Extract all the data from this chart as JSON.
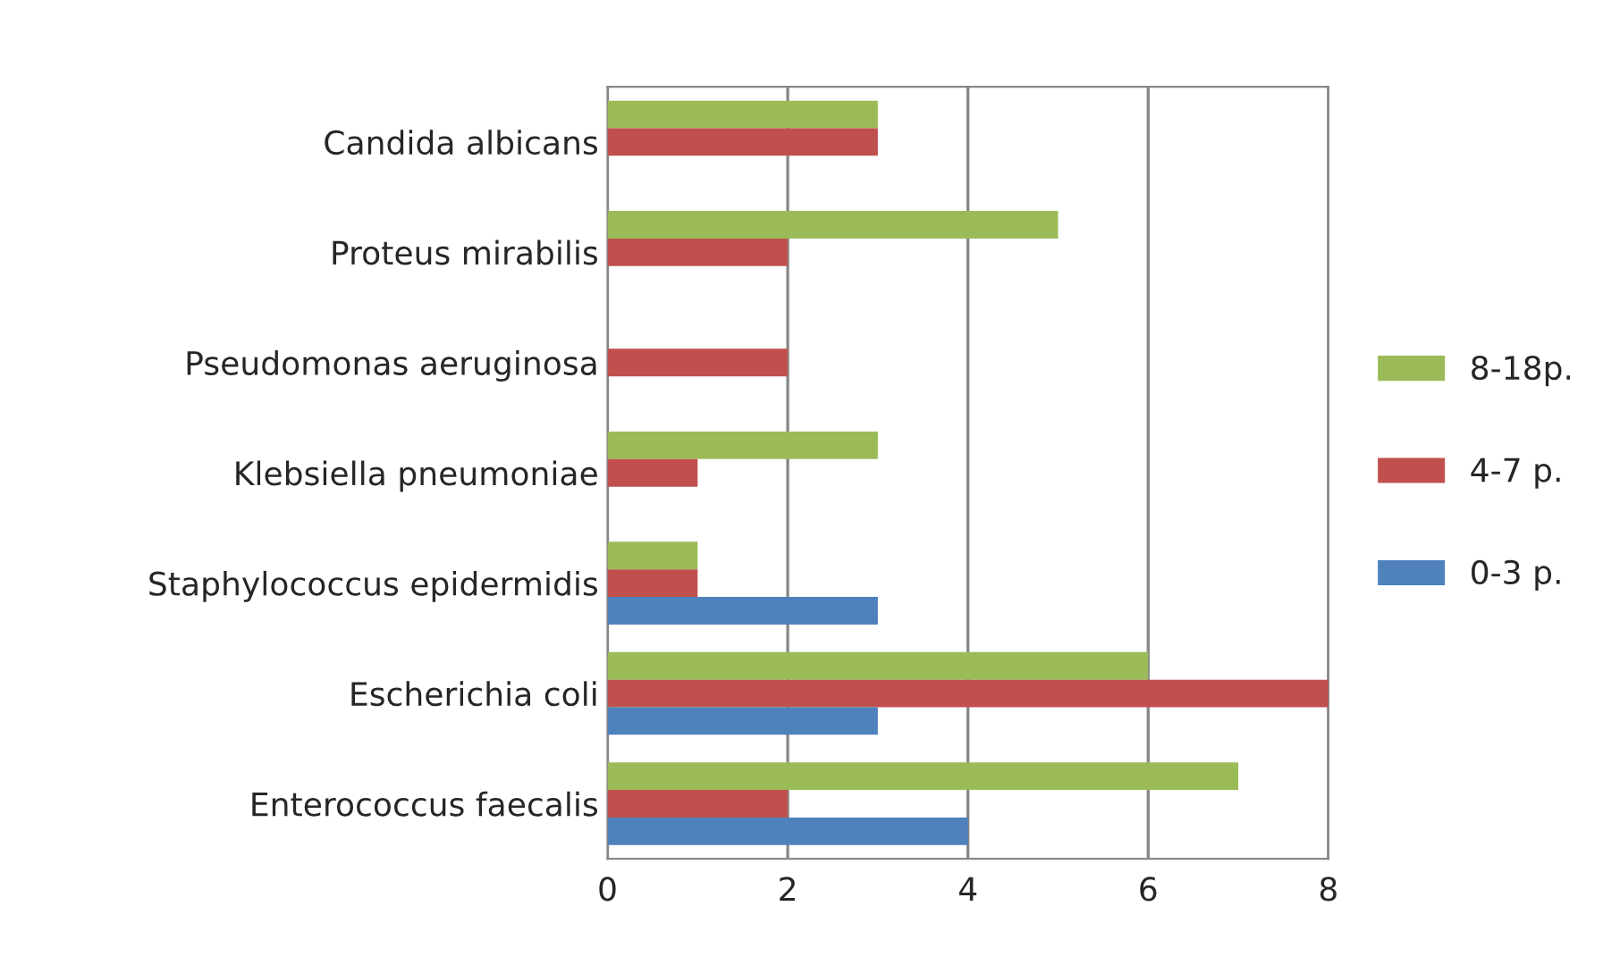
{
  "chart_data": {
    "type": "bar",
    "orientation": "horizontal",
    "categories": [
      "Candida albicans",
      "Proteus mirabilis",
      "Pseudomonas aeruginosa",
      "Klebsiella pneumoniae",
      "Staphylococcus epidermidis",
      "Escherichia coli",
      "Enterococcus faecalis"
    ],
    "series": [
      {
        "name": "8-18p.",
        "color": "#9bbb59",
        "values": [
          3,
          5,
          0,
          3,
          1,
          6,
          7
        ]
      },
      {
        "name": "4-7 p.",
        "color": "#c0504d",
        "values": [
          3,
          2,
          2,
          1,
          1,
          8,
          2
        ]
      },
      {
        "name": "0-3 p.",
        "color": "#4f81bd",
        "values": [
          0,
          0,
          0,
          0,
          3,
          3,
          4
        ]
      }
    ],
    "xlim": [
      0,
      8
    ],
    "xticks": [
      0,
      2,
      4,
      6,
      8
    ],
    "grid": "x",
    "legend": "right"
  }
}
